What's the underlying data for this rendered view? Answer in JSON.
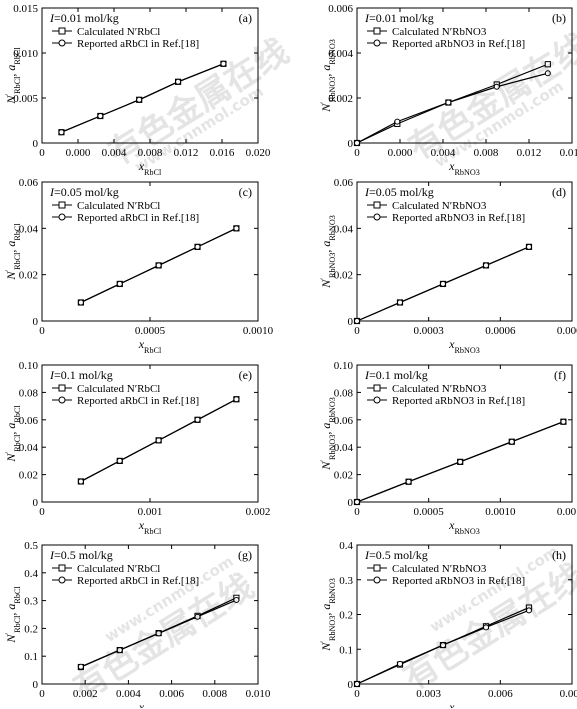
{
  "watermark": {
    "cn": "有色金属在线",
    "url": "www.cnnmol.com"
  },
  "chart_data": [
    {
      "panel_label": "(a)",
      "type": "line",
      "xlabel": "x",
      "xlabel_sub": "RbCl",
      "ylabel_parts": [
        "N",
        "RbCl",
        ", a",
        "RbCl"
      ],
      "xlim": [
        0,
        0.02
      ],
      "ylim": [
        0,
        0.015
      ],
      "xticks": [
        "0",
        "0.000",
        "0.004",
        "0.008",
        "0.012",
        "0.016",
        "0.020"
      ],
      "yticks": [
        "0",
        "0.005",
        "0.010",
        "0.015"
      ],
      "annotation": "I=0.01 mol/kg",
      "series": [
        {
          "name": "Calculated N′RbCl",
          "marker": "square",
          "x": [
            0.0018,
            0.0054,
            0.009,
            0.0126,
            0.0168
          ],
          "y": [
            0.0012,
            0.003,
            0.0048,
            0.0068,
            0.0088
          ]
        },
        {
          "name": "Reported aRbCl in Ref.[18]",
          "marker": "circle",
          "x": [
            0.0018,
            0.0054,
            0.009,
            0.0126,
            0.0168
          ],
          "y": [
            0.0012,
            0.003,
            0.0048,
            0.0068,
            0.0088
          ]
        }
      ]
    },
    {
      "panel_label": "(b)",
      "type": "line",
      "xlabel": "x",
      "xlabel_sub": "RbNO3",
      "ylabel_parts": [
        "N",
        "RbNO3",
        ", a",
        "RbNO3"
      ],
      "xlim": [
        0,
        0.016
      ],
      "ylim": [
        0,
        0.006
      ],
      "xticks": [
        "0",
        "0.000",
        "0.004",
        "0.008",
        "0.012",
        "0.016"
      ],
      "yticks": [
        "0",
        "0.002",
        "0.004",
        "0.006"
      ],
      "annotation": "I=0.01 mol/kg",
      "series": [
        {
          "name": "Calculated N′RbNO3",
          "marker": "square",
          "x": [
            0,
            0.003,
            0.0068,
            0.0104,
            0.0142
          ],
          "y": [
            0,
            0.00085,
            0.0018,
            0.0026,
            0.0035
          ]
        },
        {
          "name": "Reported aRbNO3 in Ref.[18]",
          "marker": "circle",
          "x": [
            0,
            0.003,
            0.0068,
            0.0104,
            0.0142
          ],
          "y": [
            0,
            0.00095,
            0.0018,
            0.0025,
            0.0031
          ]
        }
      ]
    },
    {
      "panel_label": "(c)",
      "type": "line",
      "xlabel": "x",
      "xlabel_sub": "RbCl",
      "ylabel_parts": [
        "N",
        "RbCl",
        ", a",
        "RbCl"
      ],
      "xlim": [
        0,
        0.001
      ],
      "ylim": [
        0,
        0.06
      ],
      "xticks": [
        "0",
        "0.0005",
        "0.0010"
      ],
      "yticks": [
        "0",
        "0.02",
        "0.04",
        "0.06"
      ],
      "annotation": "I=0.05 mol/kg",
      "series": [
        {
          "name": "Calculated N′RbCl",
          "marker": "square",
          "x": [
            0.00018,
            0.00036,
            0.00054,
            0.00072,
            0.0009
          ],
          "y": [
            0.008,
            0.016,
            0.024,
            0.032,
            0.04
          ]
        },
        {
          "name": "Reported aRbCl in Ref.[18]",
          "marker": "circle",
          "x": [
            0.00018,
            0.00036,
            0.00054,
            0.00072,
            0.0009
          ],
          "y": [
            0.008,
            0.016,
            0.024,
            0.032,
            0.04
          ]
        }
      ]
    },
    {
      "panel_label": "(d)",
      "type": "line",
      "xlabel": "x",
      "xlabel_sub": "RbNO3",
      "ylabel_parts": [
        "N",
        "RbNO3",
        ", a",
        "RbNO3"
      ],
      "xlim": [
        0,
        0.0009
      ],
      "ylim": [
        0,
        0.06
      ],
      "xticks": [
        "0",
        "0.0003",
        "0.0006",
        "0.0009"
      ],
      "yticks": [
        "0",
        "0.02",
        "0.04",
        "0.06"
      ],
      "annotation": "I=0.05 mol/kg",
      "series": [
        {
          "name": "Calculated N′RbNO3",
          "marker": "square",
          "x": [
            0,
            0.00018,
            0.00036,
            0.00054,
            0.00072
          ],
          "y": [
            0,
            0.008,
            0.016,
            0.024,
            0.032
          ]
        },
        {
          "name": "Reported aRbNO3 in Ref.[18]",
          "marker": "circle",
          "x": [
            0,
            0.00018,
            0.00036,
            0.00054,
            0.00072
          ],
          "y": [
            0,
            0.008,
            0.016,
            0.024,
            0.032
          ]
        }
      ]
    },
    {
      "panel_label": "(e)",
      "type": "line",
      "xlabel": "x",
      "xlabel_sub": "RbCl",
      "ylabel_parts": [
        "N",
        "RbCl",
        ", a",
        "RbCl"
      ],
      "xlim": [
        0,
        0.002
      ],
      "ylim": [
        0,
        0.1
      ],
      "xticks": [
        "0",
        "0.001",
        "0.002"
      ],
      "yticks": [
        "0",
        "0.02",
        "0.04",
        "0.06",
        "0.08",
        "0.10"
      ],
      "annotation": "I=0.1 mol/kg",
      "series": [
        {
          "name": "Calculated N′RbCl",
          "marker": "square",
          "x": [
            0.00036,
            0.00072,
            0.00108,
            0.00144,
            0.0018
          ],
          "y": [
            0.015,
            0.03,
            0.045,
            0.06,
            0.075
          ]
        },
        {
          "name": "Reported aRbCl in Ref.[18]",
          "marker": "circle",
          "x": [
            0.00036,
            0.00072,
            0.00108,
            0.00144,
            0.0018
          ],
          "y": [
            0.015,
            0.03,
            0.045,
            0.06,
            0.075
          ]
        }
      ]
    },
    {
      "panel_label": "(f)",
      "type": "line",
      "xlabel": "x",
      "xlabel_sub": "RbNO3",
      "ylabel_parts": [
        "N",
        "RbNO3",
        ", a",
        "RbNO3"
      ],
      "xlim": [
        0,
        0.0015
      ],
      "ylim": [
        0,
        0.1
      ],
      "xticks": [
        "0",
        "0.0005",
        "0.0010",
        "0.0015"
      ],
      "yticks": [
        "0",
        "0.02",
        "0.04",
        "0.06",
        "0.08",
        "0.10"
      ],
      "annotation": "I=0.1 mol/kg",
      "series": [
        {
          "name": "Calculated N′RbNO3",
          "marker": "square",
          "x": [
            0,
            0.00036,
            0.00072,
            0.00108,
            0.00144
          ],
          "y": [
            0,
            0.0148,
            0.0293,
            0.044,
            0.0586
          ]
        },
        {
          "name": "Reported aRbNO3 in Ref.[18]",
          "marker": "circle",
          "x": [
            0,
            0.00036,
            0.00072,
            0.00108,
            0.00144
          ],
          "y": [
            0,
            0.0148,
            0.0293,
            0.044,
            0.0586
          ]
        }
      ]
    },
    {
      "panel_label": "(g)",
      "type": "line",
      "xlabel": "x",
      "xlabel_sub": "RbCl",
      "ylabel_parts": [
        "N",
        "RbCl",
        ", a",
        "RbCl"
      ],
      "xlim": [
        0,
        0.01
      ],
      "ylim": [
        0,
        0.5
      ],
      "xticks": [
        "0",
        "0.002",
        "0.004",
        "0.006",
        "0.008",
        "0.010"
      ],
      "yticks": [
        "0",
        "0.1",
        "0.2",
        "0.3",
        "0.4",
        "0.5"
      ],
      "annotation": "I=0.5 mol/kg",
      "series": [
        {
          "name": "Calculated N′RbCl",
          "marker": "square",
          "x": [
            0.0018,
            0.0036,
            0.0054,
            0.0072,
            0.009
          ],
          "y": [
            0.061,
            0.122,
            0.183,
            0.245,
            0.31
          ]
        },
        {
          "name": "Reported aRbCl in Ref.[18]",
          "marker": "circle",
          "x": [
            0.0018,
            0.0036,
            0.0054,
            0.0072,
            0.009
          ],
          "y": [
            0.062,
            0.122,
            0.182,
            0.242,
            0.302
          ]
        }
      ]
    },
    {
      "panel_label": "(h)",
      "type": "line",
      "xlabel": "x",
      "xlabel_sub": "RbNO3",
      "ylabel_parts": [
        "N",
        "RbNO3",
        ", a",
        "RbNO3"
      ],
      "xlim": [
        0,
        0.009
      ],
      "ylim": [
        0,
        0.4
      ],
      "xticks": [
        "0",
        "0.003",
        "0.006",
        "0.009"
      ],
      "yticks": [
        "0",
        "0.1",
        "0.2",
        "0.3",
        "0.4"
      ],
      "annotation": "I=0.5 mol/kg",
      "series": [
        {
          "name": "Calculated N′RbNO3",
          "marker": "square",
          "x": [
            0,
            0.0018,
            0.0036,
            0.0054,
            0.0072
          ],
          "y": [
            0,
            0.056,
            0.112,
            0.166,
            0.22
          ]
        },
        {
          "name": "Reported aRbNO3 in Ref.[18]",
          "marker": "circle",
          "x": [
            0,
            0.0018,
            0.0036,
            0.0054,
            0.0072
          ],
          "y": [
            0,
            0.058,
            0.112,
            0.163,
            0.212
          ]
        }
      ]
    }
  ]
}
